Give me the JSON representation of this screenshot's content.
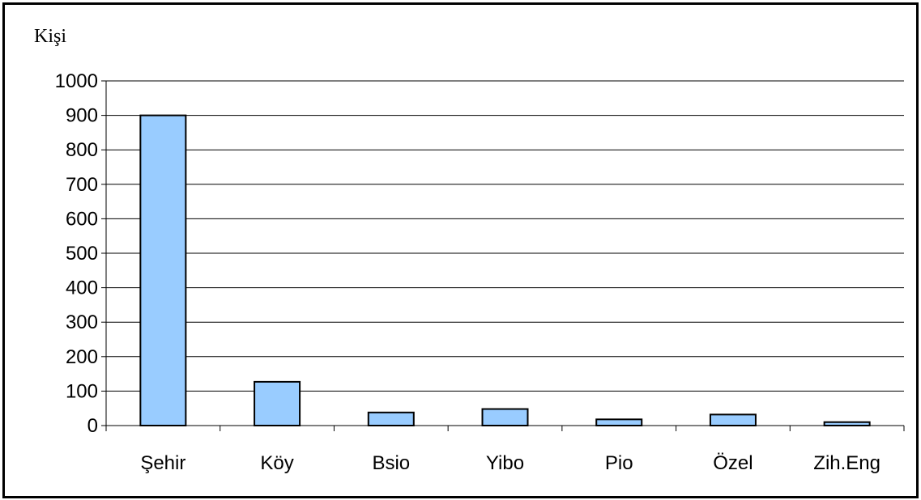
{
  "chart_data": {
    "type": "bar",
    "ylabel": "Kişi",
    "categories": [
      "Şehir",
      "Köy",
      "Bsio",
      "Yibo",
      "Pio",
      "Özel",
      "Zih.Eng"
    ],
    "values": [
      900,
      127,
      38,
      48,
      18,
      32,
      10
    ],
    "ylim": [
      0,
      1000
    ],
    "yticks": [
      0,
      100,
      200,
      300,
      400,
      500,
      600,
      700,
      800,
      900,
      1000
    ],
    "grid": true,
    "legend": "none",
    "bar_color": "#99ccff",
    "bar_edge_color": "#000000"
  }
}
